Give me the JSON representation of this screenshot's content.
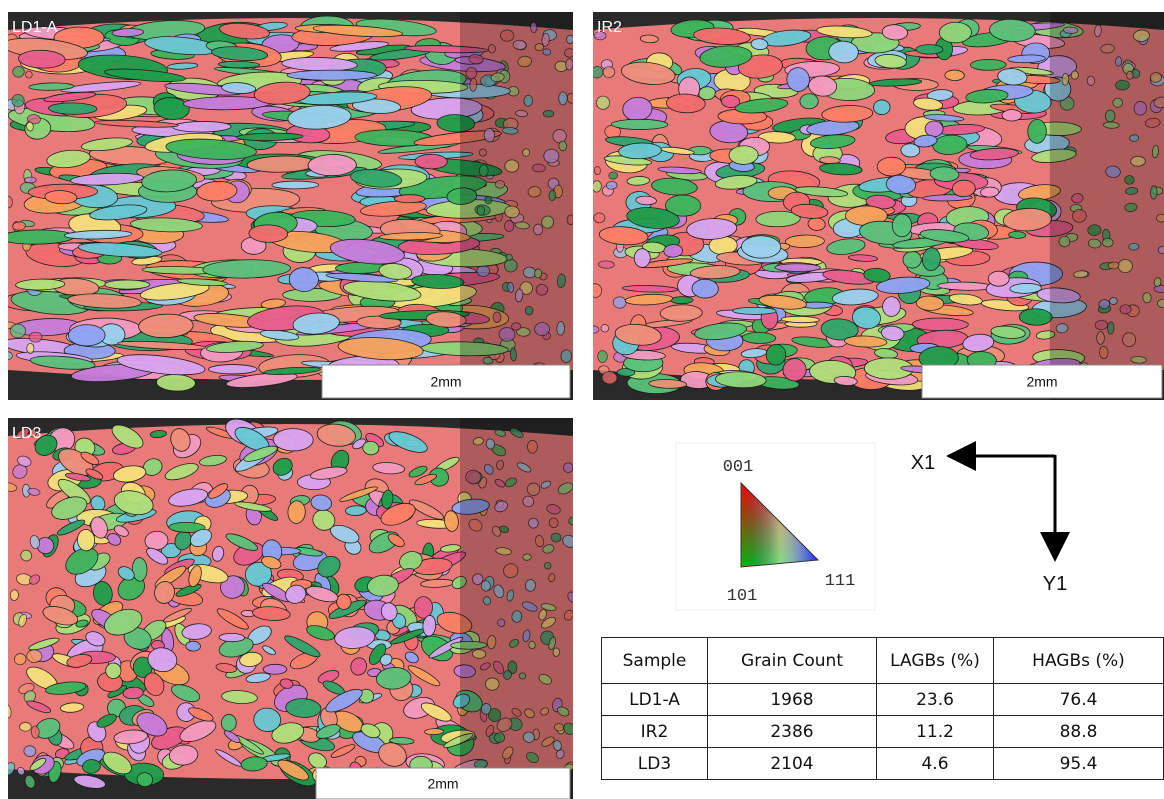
{
  "panels": [
    {
      "label": "LD1-A",
      "scale_bar": "2mm"
    },
    {
      "label": "IR2",
      "scale_bar": "2mm"
    },
    {
      "label": "LD3",
      "scale_bar": "2mm"
    }
  ],
  "ipf_legend": {
    "top": "001",
    "bottom_left": "101",
    "right": "111"
  },
  "axes": {
    "x": "X1",
    "y": "Y1"
  },
  "table": {
    "header": [
      "Sample",
      "Grain Count",
      "LAGBs (%)",
      "HAGBs (%)"
    ],
    "rows": [
      [
        "LD1-A",
        "1968",
        "23.6",
        "76.4"
      ],
      [
        "IR2",
        "2386",
        "11.2",
        "88.8"
      ],
      [
        "LD3",
        "2104",
        "4.6",
        "95.4"
      ]
    ]
  }
}
